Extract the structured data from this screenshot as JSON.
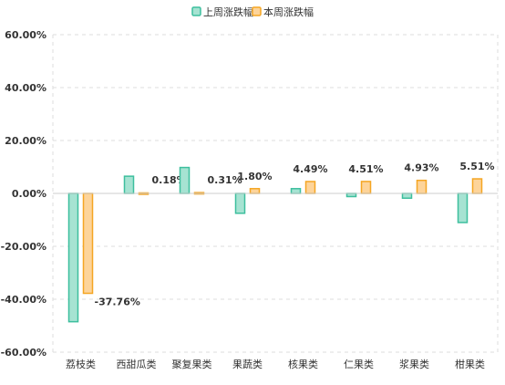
{
  "chart_data": {
    "type": "bar",
    "title": "",
    "xlabel": "",
    "ylabel": "",
    "categories": [
      "荔枝类",
      "西甜瓜类",
      "聚复果类",
      "果蔬类",
      "核果类",
      "仁果类",
      "浆果类",
      "柑果类"
    ],
    "series": [
      {
        "name": "上周涨跌幅",
        "values": [
          -48.5,
          6.5,
          9.8,
          -7.5,
          1.8,
          -1.2,
          -1.8,
          -11.0
        ],
        "color": "#3dbf9e",
        "fill": "#a6e3d2"
      },
      {
        "name": "本周涨跌幅",
        "values": [
          -37.76,
          0.18,
          0.31,
          1.8,
          4.49,
          4.51,
          4.93,
          5.51
        ],
        "color": "#f5a623",
        "fill": "#fdd49a"
      }
    ],
    "data_labels": [
      "-37.76%",
      "0.18%",
      "0.31%",
      "1.80%",
      "4.49%",
      "4.51%",
      "4.93%",
      "5.51%"
    ],
    "yticks": [
      "60.00%",
      "40.00%",
      "20.00%",
      "0.00%",
      "-20.00%",
      "-40.00%",
      "-60.00%"
    ],
    "ylim": [
      -60,
      60
    ],
    "grid": true,
    "legend": "top-center"
  }
}
